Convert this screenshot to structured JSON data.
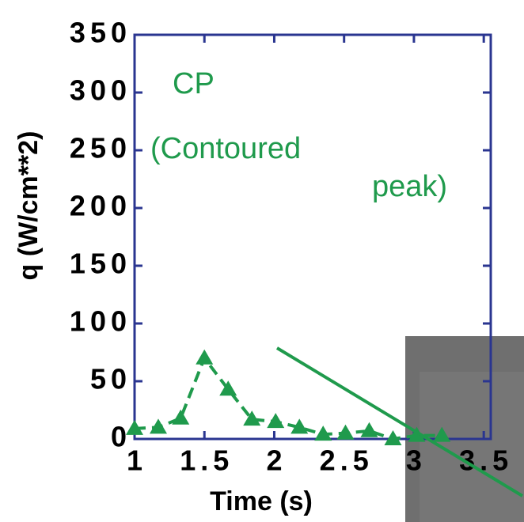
{
  "chart_data": {
    "type": "line",
    "x": [
      1,
      1.17,
      1.33,
      1.5,
      1.67,
      1.84,
      2.01,
      2.18,
      2.35,
      2.51,
      2.68,
      2.85,
      3.02,
      3.2
    ],
    "series": [
      {
        "name": "CP",
        "color": "#1f9a4c",
        "values": [
          9,
          10,
          18,
          70,
          43,
          17,
          15,
          10,
          4,
          5,
          7,
          0,
          3,
          3
        ]
      }
    ],
    "xlim": [
      1,
      3.55
    ],
    "xticks": [
      1,
      1.5,
      2,
      2.5,
      3,
      3.5
    ],
    "ylim": [
      0,
      350
    ],
    "yticks": [
      0,
      50,
      100,
      150,
      200,
      250,
      300,
      350
    ],
    "xlabel": "Time  (s)",
    "ylabel": "q  (W/cm**2)",
    "annotation": [
      "CP",
      "(Contoured",
      "peak)"
    ]
  }
}
